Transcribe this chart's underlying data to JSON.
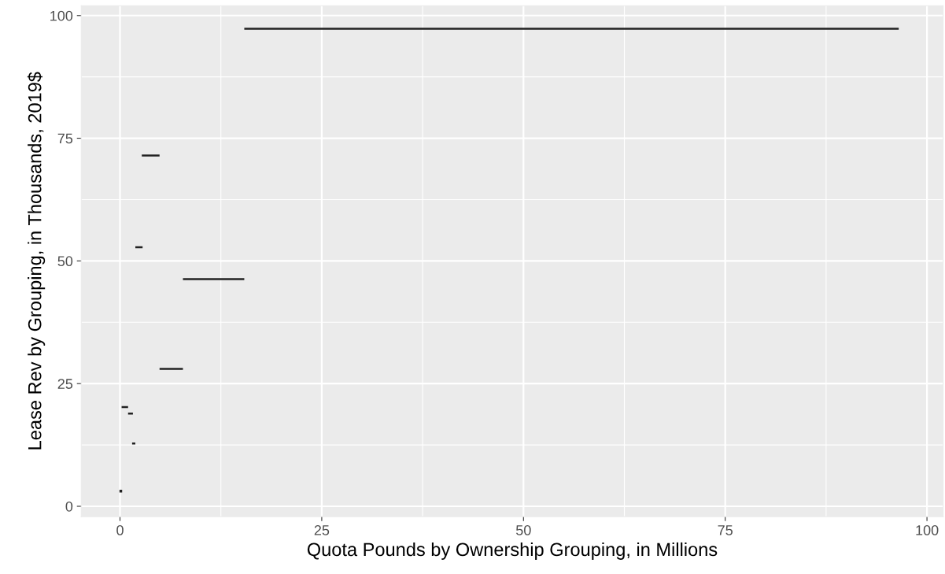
{
  "chart_data": {
    "type": "line",
    "xlabel": "Quota Pounds by Ownership Grouping, in Millions",
    "ylabel": "Lease Rev by Grouping, in Thousands, 2019$",
    "xlim": [
      -4.8,
      102
    ],
    "ylim": [
      -2.1,
      102
    ],
    "xticks": [
      0,
      25,
      50,
      75,
      100
    ],
    "yticks": [
      0,
      25,
      50,
      75,
      100
    ],
    "grid": true,
    "marker": "none",
    "line_style": "solid",
    "series": [
      {
        "color": "#222222",
        "x": [
          15.4,
          96.5
        ],
        "values": [
          97.3,
          97.3
        ]
      },
      {
        "color": "#222222",
        "x": [
          2.7,
          4.9
        ],
        "values": [
          71.5,
          71.5
        ]
      },
      {
        "color": "#222222",
        "x": [
          1.9,
          2.8
        ],
        "values": [
          52.8,
          52.8
        ]
      },
      {
        "color": "#222222",
        "x": [
          7.8,
          15.4
        ],
        "values": [
          46.3,
          46.3
        ]
      },
      {
        "color": "#222222",
        "x": [
          4.9,
          7.8
        ],
        "values": [
          28.0,
          28.0
        ]
      },
      {
        "color": "#222222",
        "x": [
          0.2,
          1.0
        ],
        "values": [
          20.2,
          20.2
        ]
      },
      {
        "color": "#222222",
        "x": [
          1.0,
          1.6
        ],
        "values": [
          18.9,
          18.9
        ]
      },
      {
        "color": "#222222",
        "x": [
          1.5,
          1.9
        ],
        "values": [
          12.8,
          12.8
        ]
      },
      {
        "type": "scatter",
        "marker": "square",
        "color": "#222222",
        "x": [
          0.1
        ],
        "values": [
          3.1
        ]
      }
    ]
  }
}
